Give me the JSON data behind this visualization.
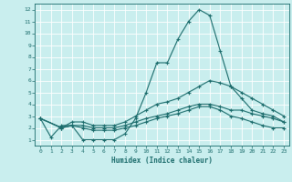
{
  "xlabel": "Humidex (Indice chaleur)",
  "xlim": [
    -0.5,
    23.5
  ],
  "ylim": [
    0.5,
    12.5
  ],
  "xticks": [
    0,
    1,
    2,
    3,
    4,
    5,
    6,
    7,
    8,
    9,
    10,
    11,
    12,
    13,
    14,
    15,
    16,
    17,
    18,
    19,
    20,
    21,
    22,
    23
  ],
  "yticks": [
    1,
    2,
    3,
    4,
    5,
    6,
    7,
    8,
    9,
    10,
    11,
    12
  ],
  "bg_color": "#c9eeee",
  "line_color": "#1a6b6b",
  "grid_color": "#b0d8d8",
  "line1_x": [
    0,
    1,
    2,
    3,
    4,
    5,
    6,
    7,
    8,
    9,
    10,
    11,
    12,
    13,
    14,
    15,
    16,
    17,
    18,
    19,
    20,
    21,
    22,
    23
  ],
  "line1_y": [
    2.8,
    1.2,
    2.2,
    2.2,
    1.0,
    1.0,
    1.0,
    1.0,
    1.5,
    2.8,
    5.0,
    7.5,
    7.5,
    9.5,
    11.0,
    12.0,
    11.5,
    8.5,
    5.5,
    4.5,
    3.5,
    3.2,
    3.0,
    2.5
  ],
  "line2_x": [
    0,
    2,
    3,
    4,
    5,
    6,
    7,
    8,
    9,
    10,
    11,
    12,
    13,
    14,
    15,
    16,
    17,
    18,
    19,
    20,
    21,
    22,
    23
  ],
  "line2_y": [
    2.8,
    2.0,
    2.5,
    2.5,
    2.2,
    2.2,
    2.2,
    2.5,
    3.0,
    3.5,
    4.0,
    4.2,
    4.5,
    5.0,
    5.5,
    6.0,
    5.8,
    5.5,
    5.0,
    4.5,
    4.0,
    3.5,
    3.0
  ],
  "line3_x": [
    0,
    2,
    3,
    4,
    5,
    6,
    7,
    8,
    9,
    10,
    11,
    12,
    13,
    14,
    15,
    16,
    17,
    18,
    19,
    20,
    21,
    22,
    23
  ],
  "line3_y": [
    2.8,
    2.0,
    2.2,
    2.2,
    2.0,
    2.0,
    2.0,
    2.2,
    2.5,
    2.8,
    3.0,
    3.2,
    3.5,
    3.8,
    4.0,
    4.0,
    3.8,
    3.5,
    3.5,
    3.2,
    3.0,
    2.8,
    2.5
  ],
  "line4_x": [
    0,
    2,
    3,
    4,
    5,
    6,
    7,
    8,
    9,
    10,
    11,
    12,
    13,
    14,
    15,
    16,
    17,
    18,
    19,
    20,
    21,
    22,
    23
  ],
  "line4_y": [
    2.8,
    2.0,
    2.2,
    2.0,
    1.8,
    1.8,
    1.8,
    2.0,
    2.2,
    2.5,
    2.8,
    3.0,
    3.2,
    3.5,
    3.8,
    3.8,
    3.5,
    3.0,
    2.8,
    2.5,
    2.2,
    2.0,
    2.0
  ]
}
